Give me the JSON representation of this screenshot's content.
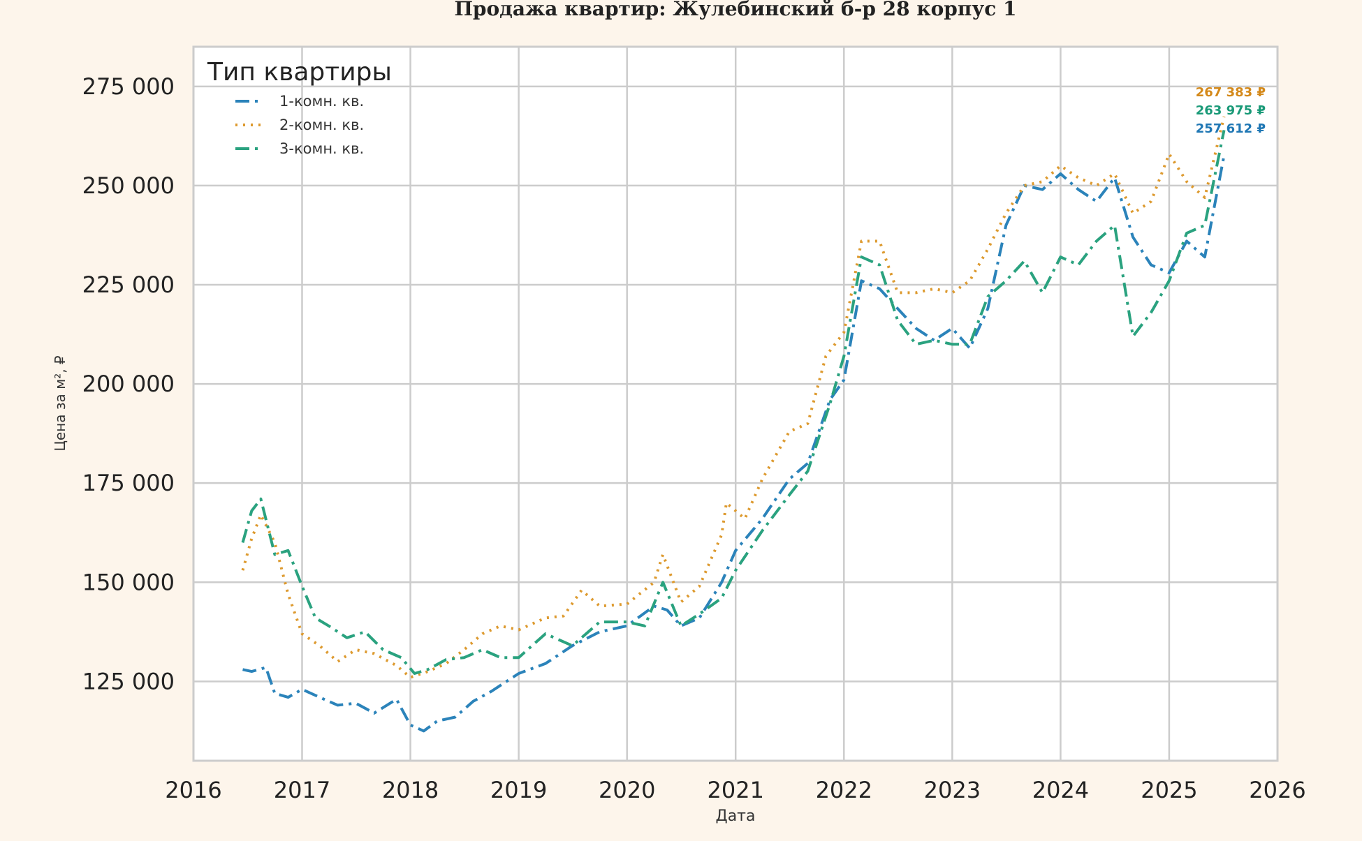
{
  "chart_data": {
    "type": "line",
    "title": "Продажа квартир: Жулебинский б-р 28 корпус 1",
    "xlabel": "Дата",
    "ylabel": "Цена за м², ₽",
    "xlim": [
      "2016-01-01",
      "2026-01-01"
    ],
    "ylim": [
      105000,
      285000
    ],
    "x_ticks": [
      "2016",
      "2017",
      "2018",
      "2019",
      "2020",
      "2021",
      "2022",
      "2023",
      "2024",
      "2025",
      "2026"
    ],
    "y_ticks": [
      125000,
      150000,
      175000,
      200000,
      225000,
      250000,
      275000
    ],
    "y_tick_labels": [
      "125 000",
      "150 000",
      "175 000",
      "200 000",
      "225 000",
      "250 000",
      "275 000"
    ],
    "grid": true,
    "legend": {
      "title": "Тип квартиры",
      "position": "top-left"
    },
    "series": [
      {
        "name": "1-комн. кв.",
        "color": "#2b83ba",
        "dash": "dashdot",
        "points": [
          [
            "2016-06-15",
            128000
          ],
          [
            "2016-07-15",
            127500
          ],
          [
            "2016-09-01",
            128500
          ],
          [
            "2016-10-01",
            122000
          ],
          [
            "2016-11-15",
            121000
          ],
          [
            "2017-01-01",
            123000
          ],
          [
            "2017-03-01",
            121000
          ],
          [
            "2017-05-01",
            119000
          ],
          [
            "2017-07-01",
            119500
          ],
          [
            "2017-09-01",
            117000
          ],
          [
            "2017-11-15",
            120500
          ],
          [
            "2018-01-01",
            114000
          ],
          [
            "2018-02-15",
            112500
          ],
          [
            "2018-04-01",
            115000
          ],
          [
            "2018-06-01",
            116000
          ],
          [
            "2018-08-01",
            120000
          ],
          [
            "2018-10-01",
            122500
          ],
          [
            "2019-01-01",
            127000
          ],
          [
            "2019-04-01",
            129500
          ],
          [
            "2019-07-01",
            134000
          ],
          [
            "2019-10-01",
            137500
          ],
          [
            "2020-01-01",
            139000
          ],
          [
            "2020-04-01",
            144000
          ],
          [
            "2020-05-15",
            143000
          ],
          [
            "2020-07-01",
            139000
          ],
          [
            "2020-09-01",
            141000
          ],
          [
            "2020-11-15",
            150000
          ],
          [
            "2021-01-01",
            158000
          ],
          [
            "2021-04-01",
            166000
          ],
          [
            "2021-07-01",
            176000
          ],
          [
            "2021-09-01",
            180000
          ],
          [
            "2021-11-15",
            196000
          ],
          [
            "2022-01-01",
            201000
          ],
          [
            "2022-03-01",
            226000
          ],
          [
            "2022-05-01",
            224000
          ],
          [
            "2022-07-01",
            219000
          ],
          [
            "2022-09-01",
            214000
          ],
          [
            "2022-11-01",
            211000
          ],
          [
            "2023-01-01",
            214000
          ],
          [
            "2023-03-01",
            209000
          ],
          [
            "2023-05-01",
            219000
          ],
          [
            "2023-07-01",
            240000
          ],
          [
            "2023-09-01",
            250000
          ],
          [
            "2023-11-01",
            249000
          ],
          [
            "2024-01-01",
            253000
          ],
          [
            "2024-03-01",
            249000
          ],
          [
            "2024-05-01",
            246000
          ],
          [
            "2024-07-01",
            252000
          ],
          [
            "2024-09-01",
            237000
          ],
          [
            "2024-11-01",
            230000
          ],
          [
            "2025-01-01",
            228000
          ],
          [
            "2025-03-01",
            236000
          ],
          [
            "2025-05-01",
            232000
          ],
          [
            "2025-07-05",
            257612
          ]
        ]
      },
      {
        "name": "2-комн. кв.",
        "color": "#dd9a2f",
        "dash": "dotted",
        "points": [
          [
            "2016-06-15",
            153000
          ],
          [
            "2016-07-15",
            161000
          ],
          [
            "2016-08-15",
            167000
          ],
          [
            "2016-10-01",
            160000
          ],
          [
            "2016-11-15",
            147000
          ],
          [
            "2017-01-01",
            137000
          ],
          [
            "2017-03-01",
            134000
          ],
          [
            "2017-05-01",
            130000
          ],
          [
            "2017-07-01",
            133000
          ],
          [
            "2017-09-01",
            132000
          ],
          [
            "2017-11-15",
            129000
          ],
          [
            "2018-01-01",
            126000
          ],
          [
            "2018-03-01",
            127500
          ],
          [
            "2018-05-01",
            129500
          ],
          [
            "2018-07-01",
            133000
          ],
          [
            "2018-09-01",
            137000
          ],
          [
            "2018-11-01",
            139000
          ],
          [
            "2019-01-01",
            138000
          ],
          [
            "2019-04-01",
            141000
          ],
          [
            "2019-06-01",
            141500
          ],
          [
            "2019-08-01",
            148000
          ],
          [
            "2019-10-01",
            144000
          ],
          [
            "2020-01-01",
            144500
          ],
          [
            "2020-04-01",
            150000
          ],
          [
            "2020-05-01",
            157000
          ],
          [
            "2020-07-01",
            145000
          ],
          [
            "2020-09-01",
            149000
          ],
          [
            "2020-11-15",
            162000
          ],
          [
            "2020-12-01",
            170000
          ],
          [
            "2021-02-01",
            166000
          ],
          [
            "2021-04-01",
            176000
          ],
          [
            "2021-07-01",
            188000
          ],
          [
            "2021-09-01",
            190000
          ],
          [
            "2021-11-01",
            207000
          ],
          [
            "2022-01-01",
            213000
          ],
          [
            "2022-03-01",
            236000
          ],
          [
            "2022-05-01",
            236000
          ],
          [
            "2022-07-01",
            223000
          ],
          [
            "2022-09-01",
            223000
          ],
          [
            "2022-11-01",
            224000
          ],
          [
            "2023-01-01",
            223000
          ],
          [
            "2023-03-01",
            226000
          ],
          [
            "2023-05-01",
            234000
          ],
          [
            "2023-07-01",
            243000
          ],
          [
            "2023-09-01",
            250000
          ],
          [
            "2023-11-01",
            251000
          ],
          [
            "2024-01-01",
            255000
          ],
          [
            "2024-03-01",
            252000
          ],
          [
            "2024-05-01",
            250000
          ],
          [
            "2024-07-01",
            253000
          ],
          [
            "2024-09-01",
            243000
          ],
          [
            "2024-11-01",
            246000
          ],
          [
            "2025-01-01",
            258000
          ],
          [
            "2025-03-01",
            251000
          ],
          [
            "2025-05-01",
            247000
          ],
          [
            "2025-07-05",
            267383
          ]
        ]
      },
      {
        "name": "3-комн. кв.",
        "color": "#2aa27f",
        "dash": "dashdot",
        "points": [
          [
            "2016-06-15",
            160000
          ],
          [
            "2016-07-15",
            168000
          ],
          [
            "2016-08-15",
            171000
          ],
          [
            "2016-10-01",
            157000
          ],
          [
            "2016-11-15",
            158000
          ],
          [
            "2017-01-01",
            149000
          ],
          [
            "2017-02-15",
            141000
          ],
          [
            "2017-04-01",
            139000
          ],
          [
            "2017-06-01",
            136000
          ],
          [
            "2017-08-01",
            137500
          ],
          [
            "2017-10-01",
            133000
          ],
          [
            "2017-12-01",
            131000
          ],
          [
            "2018-01-15",
            127000
          ],
          [
            "2018-03-01",
            128000
          ],
          [
            "2018-05-01",
            130500
          ],
          [
            "2018-07-01",
            131000
          ],
          [
            "2018-09-01",
            133000
          ],
          [
            "2018-11-01",
            131000
          ],
          [
            "2019-01-01",
            131000
          ],
          [
            "2019-04-01",
            137000
          ],
          [
            "2019-07-01",
            134000
          ],
          [
            "2019-10-01",
            140000
          ],
          [
            "2020-01-01",
            140000
          ],
          [
            "2020-03-01",
            139000
          ],
          [
            "2020-05-01",
            150000
          ],
          [
            "2020-07-01",
            139000
          ],
          [
            "2020-09-01",
            142000
          ],
          [
            "2020-11-15",
            146000
          ],
          [
            "2021-01-01",
            153000
          ],
          [
            "2021-04-01",
            163000
          ],
          [
            "2021-07-01",
            172000
          ],
          [
            "2021-09-01",
            178000
          ],
          [
            "2021-11-15",
            195000
          ],
          [
            "2022-01-01",
            207000
          ],
          [
            "2022-03-01",
            232000
          ],
          [
            "2022-05-01",
            230000
          ],
          [
            "2022-07-01",
            216000
          ],
          [
            "2022-09-01",
            210000
          ],
          [
            "2022-11-01",
            211000
          ],
          [
            "2023-01-01",
            210000
          ],
          [
            "2023-03-01",
            210000
          ],
          [
            "2023-05-01",
            222000
          ],
          [
            "2023-07-01",
            226000
          ],
          [
            "2023-09-01",
            231000
          ],
          [
            "2023-11-01",
            223000
          ],
          [
            "2024-01-01",
            232000
          ],
          [
            "2024-03-01",
            230000
          ],
          [
            "2024-05-01",
            236000
          ],
          [
            "2024-07-01",
            240000
          ],
          [
            "2024-09-01",
            212000
          ],
          [
            "2024-11-01",
            218000
          ],
          [
            "2025-01-01",
            226000
          ],
          [
            "2025-03-01",
            238000
          ],
          [
            "2025-05-01",
            240000
          ],
          [
            "2025-07-05",
            263975
          ]
        ]
      }
    ],
    "annotations": [
      {
        "text": "267 383 ₽",
        "color": "#d4891a"
      },
      {
        "text": "263 975 ₽",
        "color": "#1a9a78"
      },
      {
        "text": "257 612 ₽",
        "color": "#1f77b4"
      }
    ]
  }
}
